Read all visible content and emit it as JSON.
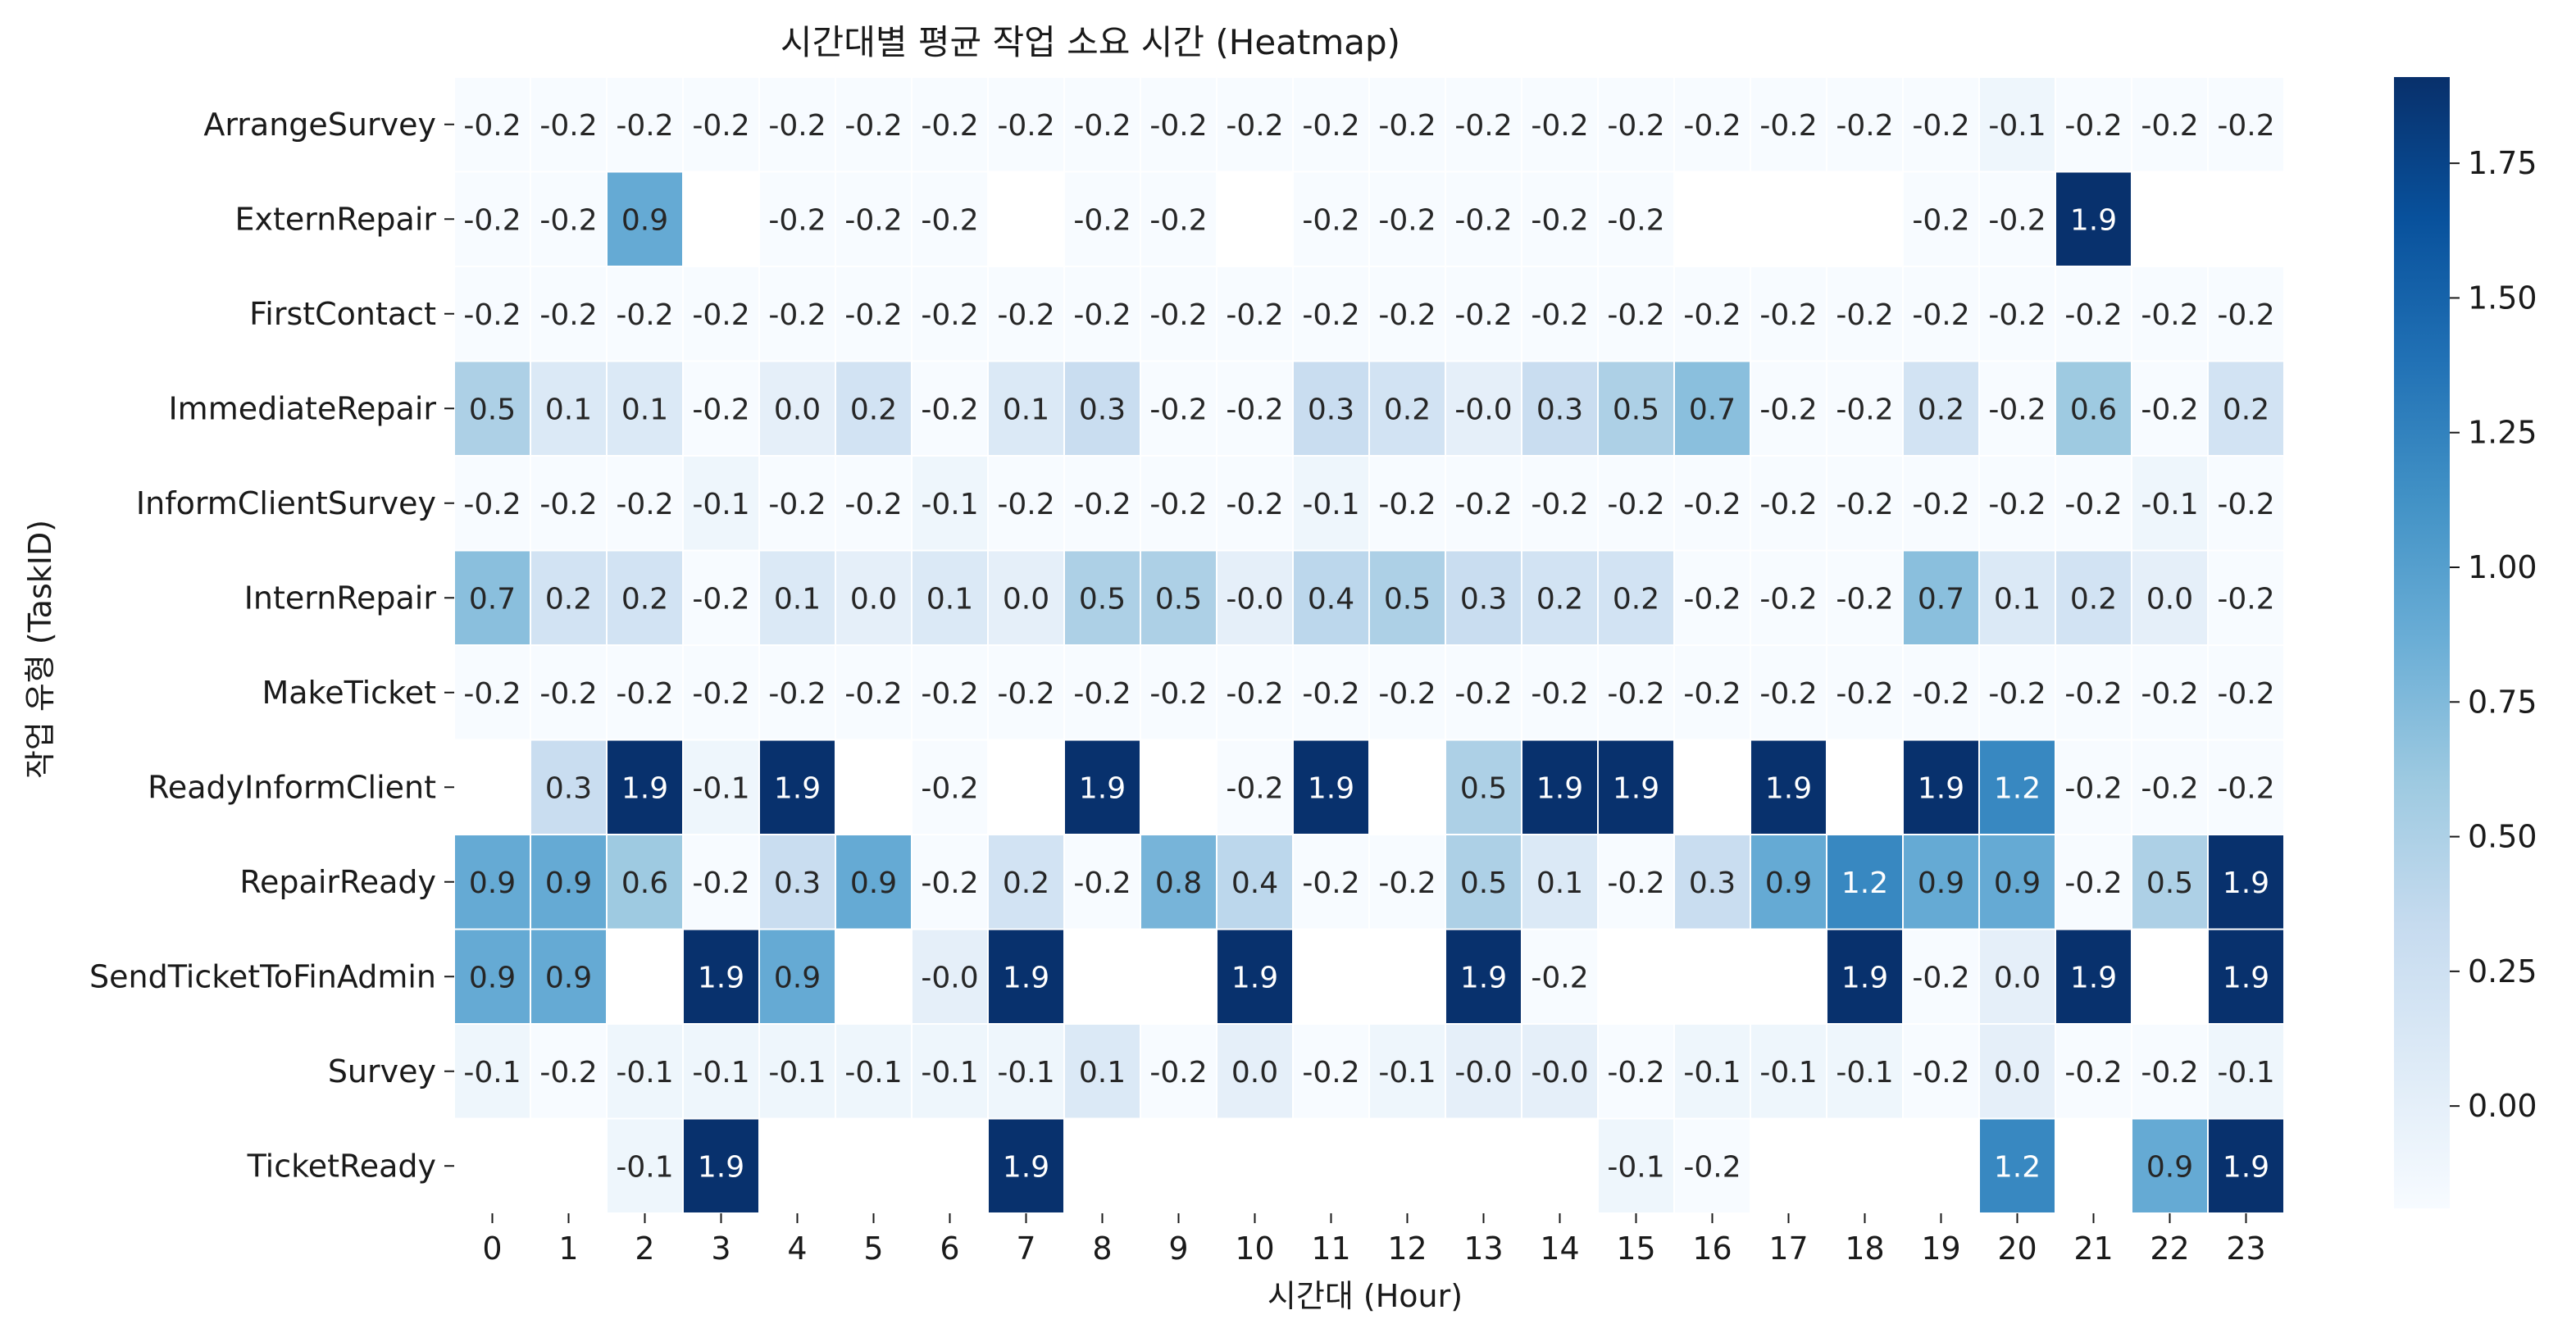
{
  "chart_data": {
    "type": "heatmap",
    "title": "시간대별 평균 작업 소요 시간 (Heatmap)",
    "xlabel": "시간대 (Hour)",
    "ylabel": "작업 유형 (TaskID)",
    "x": [
      "0",
      "1",
      "2",
      "3",
      "4",
      "5",
      "6",
      "7",
      "8",
      "9",
      "10",
      "11",
      "12",
      "13",
      "14",
      "15",
      "16",
      "17",
      "18",
      "19",
      "20",
      "21",
      "22",
      "23"
    ],
    "y": [
      "ArrangeSurvey",
      "ExternRepair",
      "FirstContact",
      "ImmediateRepair",
      "InformClientSurvey",
      "InternRepair",
      "MakeTicket",
      "ReadyInformClient",
      "RepairReady",
      "SendTicketToFinAdmin",
      "Survey",
      "TicketReady"
    ],
    "values": [
      [
        -0.2,
        -0.2,
        -0.2,
        -0.2,
        -0.2,
        -0.2,
        -0.2,
        -0.2,
        -0.2,
        -0.2,
        -0.2,
        -0.2,
        -0.2,
        -0.2,
        -0.2,
        -0.2,
        -0.2,
        -0.2,
        -0.2,
        -0.2,
        -0.1,
        -0.2,
        -0.2,
        -0.2
      ],
      [
        -0.2,
        -0.2,
        0.9,
        null,
        -0.2,
        -0.2,
        -0.2,
        null,
        -0.2,
        -0.2,
        null,
        -0.2,
        -0.2,
        -0.2,
        -0.2,
        -0.2,
        null,
        null,
        null,
        -0.2,
        -0.2,
        1.9,
        null,
        null
      ],
      [
        -0.2,
        -0.2,
        -0.2,
        -0.2,
        -0.2,
        -0.2,
        -0.2,
        -0.2,
        -0.2,
        -0.2,
        -0.2,
        -0.2,
        -0.2,
        -0.2,
        -0.2,
        -0.2,
        -0.2,
        -0.2,
        -0.2,
        -0.2,
        -0.2,
        -0.2,
        -0.2,
        -0.2
      ],
      [
        0.5,
        0.1,
        0.1,
        -0.2,
        0.0,
        0.2,
        -0.2,
        0.1,
        0.3,
        -0.2,
        -0.2,
        0.3,
        0.2,
        -0.0,
        0.3,
        0.5,
        0.7,
        -0.2,
        -0.2,
        0.2,
        -0.2,
        0.6,
        -0.2,
        0.2
      ],
      [
        -0.2,
        -0.2,
        -0.2,
        -0.1,
        -0.2,
        -0.2,
        -0.1,
        -0.2,
        -0.2,
        -0.2,
        -0.2,
        -0.1,
        -0.2,
        -0.2,
        -0.2,
        -0.2,
        -0.2,
        -0.2,
        -0.2,
        -0.2,
        -0.2,
        -0.2,
        -0.1,
        -0.2
      ],
      [
        0.7,
        0.2,
        0.2,
        -0.2,
        0.1,
        0.0,
        0.1,
        0.0,
        0.5,
        0.5,
        -0.0,
        0.4,
        0.5,
        0.3,
        0.2,
        0.2,
        -0.2,
        -0.2,
        -0.2,
        0.7,
        0.1,
        0.2,
        0.0,
        -0.2
      ],
      [
        -0.2,
        -0.2,
        -0.2,
        -0.2,
        -0.2,
        -0.2,
        -0.2,
        -0.2,
        -0.2,
        -0.2,
        -0.2,
        -0.2,
        -0.2,
        -0.2,
        -0.2,
        -0.2,
        -0.2,
        -0.2,
        -0.2,
        -0.2,
        -0.2,
        -0.2,
        -0.2,
        -0.2
      ],
      [
        null,
        0.3,
        1.9,
        -0.1,
        1.9,
        null,
        -0.2,
        null,
        1.9,
        null,
        -0.2,
        1.9,
        null,
        0.5,
        1.9,
        1.9,
        null,
        1.9,
        null,
        1.9,
        1.2,
        -0.2,
        -0.2,
        -0.2
      ],
      [
        0.9,
        0.9,
        0.6,
        -0.2,
        0.3,
        0.9,
        -0.2,
        0.2,
        -0.2,
        0.8,
        0.4,
        -0.2,
        -0.2,
        0.5,
        0.1,
        -0.2,
        0.3,
        0.9,
        1.2,
        0.9,
        0.9,
        -0.2,
        0.5,
        1.9
      ],
      [
        0.9,
        0.9,
        null,
        1.9,
        0.9,
        null,
        -0.0,
        1.9,
        null,
        null,
        1.9,
        null,
        null,
        1.9,
        -0.2,
        null,
        null,
        null,
        1.9,
        -0.2,
        0.0,
        1.9,
        null,
        1.9
      ],
      [
        -0.1,
        -0.2,
        -0.1,
        -0.1,
        -0.1,
        -0.1,
        -0.1,
        -0.1,
        0.1,
        -0.2,
        0.0,
        -0.2,
        -0.1,
        -0.0,
        -0.0,
        -0.2,
        -0.1,
        -0.1,
        -0.1,
        -0.2,
        0.0,
        -0.2,
        -0.2,
        -0.1
      ],
      [
        null,
        null,
        -0.1,
        1.9,
        null,
        null,
        null,
        1.9,
        null,
        null,
        null,
        null,
        null,
        null,
        null,
        -0.1,
        -0.2,
        null,
        null,
        null,
        1.2,
        null,
        0.9,
        1.9
      ]
    ],
    "value_labels": [
      [
        "-0.2",
        "-0.2",
        "-0.2",
        "-0.2",
        "-0.2",
        "-0.2",
        "-0.2",
        "-0.2",
        "-0.2",
        "-0.2",
        "-0.2",
        "-0.2",
        "-0.2",
        "-0.2",
        "-0.2",
        "-0.2",
        "-0.2",
        "-0.2",
        "-0.2",
        "-0.2",
        "-0.1",
        "-0.2",
        "-0.2",
        "-0.2"
      ],
      [
        "-0.2",
        "-0.2",
        "0.9",
        "",
        "-0.2",
        "-0.2",
        "-0.2",
        "",
        "-0.2",
        "-0.2",
        "",
        "-0.2",
        "-0.2",
        "-0.2",
        "-0.2",
        "-0.2",
        "",
        "",
        "",
        "-0.2",
        "-0.2",
        "1.9",
        "",
        ""
      ],
      [
        "-0.2",
        "-0.2",
        "-0.2",
        "-0.2",
        "-0.2",
        "-0.2",
        "-0.2",
        "-0.2",
        "-0.2",
        "-0.2",
        "-0.2",
        "-0.2",
        "-0.2",
        "-0.2",
        "-0.2",
        "-0.2",
        "-0.2",
        "-0.2",
        "-0.2",
        "-0.2",
        "-0.2",
        "-0.2",
        "-0.2",
        "-0.2"
      ],
      [
        "0.5",
        "0.1",
        "0.1",
        "-0.2",
        "0.0",
        "0.2",
        "-0.2",
        "0.1",
        "0.3",
        "-0.2",
        "-0.2",
        "0.3",
        "0.2",
        "-0.0",
        "0.3",
        "0.5",
        "0.7",
        "-0.2",
        "-0.2",
        "0.2",
        "-0.2",
        "0.6",
        "-0.2",
        "0.2"
      ],
      [
        "-0.2",
        "-0.2",
        "-0.2",
        "-0.1",
        "-0.2",
        "-0.2",
        "-0.1",
        "-0.2",
        "-0.2",
        "-0.2",
        "-0.2",
        "-0.1",
        "-0.2",
        "-0.2",
        "-0.2",
        "-0.2",
        "-0.2",
        "-0.2",
        "-0.2",
        "-0.2",
        "-0.2",
        "-0.2",
        "-0.1",
        "-0.2"
      ],
      [
        "0.7",
        "0.2",
        "0.2",
        "-0.2",
        "0.1",
        "0.0",
        "0.1",
        "0.0",
        "0.5",
        "0.5",
        "-0.0",
        "0.4",
        "0.5",
        "0.3",
        "0.2",
        "0.2",
        "-0.2",
        "-0.2",
        "-0.2",
        "0.7",
        "0.1",
        "0.2",
        "0.0",
        "-0.2"
      ],
      [
        "-0.2",
        "-0.2",
        "-0.2",
        "-0.2",
        "-0.2",
        "-0.2",
        "-0.2",
        "-0.2",
        "-0.2",
        "-0.2",
        "-0.2",
        "-0.2",
        "-0.2",
        "-0.2",
        "-0.2",
        "-0.2",
        "-0.2",
        "-0.2",
        "-0.2",
        "-0.2",
        "-0.2",
        "-0.2",
        "-0.2",
        "-0.2"
      ],
      [
        "",
        "0.3",
        "1.9",
        "-0.1",
        "1.9",
        "",
        "-0.2",
        "",
        "1.9",
        "",
        "-0.2",
        "1.9",
        "",
        "0.5",
        "1.9",
        "1.9",
        "",
        "1.9",
        "",
        "1.9",
        "1.2",
        "-0.2",
        "-0.2",
        "-0.2"
      ],
      [
        "0.9",
        "0.9",
        "0.6",
        "-0.2",
        "0.3",
        "0.9",
        "-0.2",
        "0.2",
        "-0.2",
        "0.8",
        "0.4",
        "-0.2",
        "-0.2",
        "0.5",
        "0.1",
        "-0.2",
        "0.3",
        "0.9",
        "1.2",
        "0.9",
        "0.9",
        "-0.2",
        "0.5",
        "1.9"
      ],
      [
        "0.9",
        "0.9",
        "",
        "1.9",
        "0.9",
        "",
        "-0.0",
        "1.9",
        "",
        "",
        "1.9",
        "",
        "",
        "1.9",
        "-0.2",
        "",
        "",
        "",
        "1.9",
        "-0.2",
        "0.0",
        "1.9",
        "",
        "1.9"
      ],
      [
        "-0.1",
        "-0.2",
        "-0.1",
        "-0.1",
        "-0.1",
        "-0.1",
        "-0.1",
        "-0.1",
        "0.1",
        "-0.2",
        "0.0",
        "-0.2",
        "-0.1",
        "-0.0",
        "-0.0",
        "-0.2",
        "-0.1",
        "-0.1",
        "-0.1",
        "-0.2",
        "0.0",
        "-0.2",
        "-0.2",
        "-0.1"
      ],
      [
        "",
        "",
        "-0.1",
        "1.9",
        "",
        "",
        "",
        "1.9",
        "",
        "",
        "",
        "",
        "",
        "",
        "",
        "-0.1",
        "-0.2",
        "",
        "",
        "",
        "1.2",
        "",
        "0.9",
        "1.9"
      ]
    ],
    "colorbar": {
      "min": -0.19,
      "max": 1.91,
      "ticks": [
        0.0,
        0.25,
        0.5,
        0.75,
        1.0,
        1.25,
        1.5,
        1.75
      ],
      "tick_labels": [
        "0.00",
        "0.25",
        "0.50",
        "0.75",
        "1.00",
        "1.25",
        "1.50",
        "1.75"
      ]
    },
    "colormap": "Blues",
    "colors": [
      "#f7fbff",
      "#deebf7",
      "#c6dbef",
      "#9ecae1",
      "#6baed6",
      "#4292c6",
      "#2171b5",
      "#08519c",
      "#08306b"
    ],
    "legend": "none",
    "grid": false
  }
}
